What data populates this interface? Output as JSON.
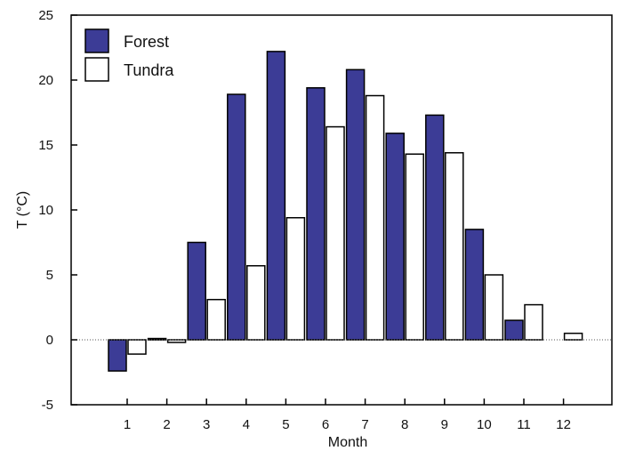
{
  "chart_data": {
    "type": "bar",
    "title": "",
    "xlabel": "Month",
    "ylabel": "T (°C)",
    "ylim": [
      -5,
      25
    ],
    "yticks": [
      "-5",
      "0",
      "5",
      "10",
      "15",
      "20",
      "25"
    ],
    "categories": [
      "1",
      "2",
      "3",
      "4",
      "5",
      "6",
      "7",
      "8",
      "9",
      "10",
      "11",
      "12"
    ],
    "series": [
      {
        "name": "Forest",
        "color": "#3c3c96",
        "values": [
          -2.4,
          0.1,
          7.5,
          18.9,
          22.2,
          19.4,
          20.8,
          15.9,
          17.3,
          8.5,
          1.5,
          null
        ]
      },
      {
        "name": "Tundra",
        "color": "#ffffff",
        "values": [
          -1.1,
          -0.2,
          3.1,
          5.7,
          9.4,
          16.4,
          18.8,
          14.3,
          14.4,
          5.0,
          2.7,
          0.5
        ]
      }
    ],
    "zero_line": "dotted",
    "grid": false,
    "legend_position": "top-left"
  }
}
